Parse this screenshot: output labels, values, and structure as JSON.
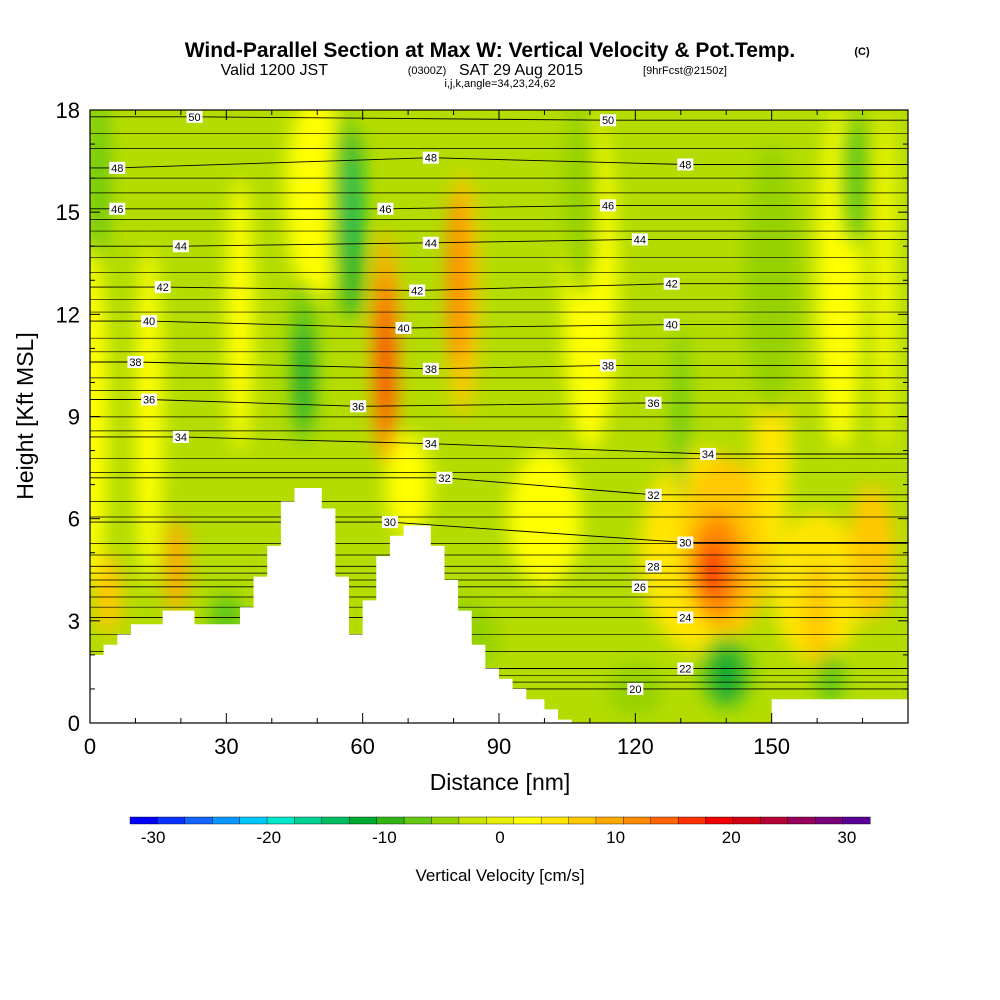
{
  "title": {
    "main": "Wind-Parallel Section at Max W: Vertical Velocity & Pot.Temp.",
    "copyright": "(C)",
    "valid_prefix": "Valid 1200 JST",
    "valid_utc": "(0300Z)",
    "valid_date": "SAT 29 Aug 2015",
    "forecast": "[9hrFcst@2150z]",
    "subtitle2": "i,j,k,angle=34,23,24,62"
  },
  "chart_data": {
    "type": "heatmap",
    "xlabel": "Distance [nm]",
    "ylabel": "Height [Kft MSL]",
    "xlim": [
      0,
      180
    ],
    "ylim": [
      0,
      18
    ],
    "xticks": [
      0,
      30,
      60,
      90,
      120,
      150
    ],
    "yticks": [
      0,
      3,
      6,
      9,
      12,
      15,
      18
    ],
    "shaded_field": "Vertical Velocity [cm/s]",
    "colorbar": {
      "label": "Vertical Velocity [cm/s]",
      "ticks": [
        -30,
        -20,
        -10,
        0,
        10,
        20,
        30
      ],
      "range": [
        -32,
        32
      ],
      "colors": [
        "#0000ff",
        "#0a32ff",
        "#1464ff",
        "#0a96ff",
        "#00c8ff",
        "#00e6c8",
        "#00d296",
        "#00be64",
        "#00aa32",
        "#32b414",
        "#64c814",
        "#96d200",
        "#c8e600",
        "#e6f000",
        "#ffff00",
        "#ffe600",
        "#ffc800",
        "#ffaa00",
        "#ff8c00",
        "#ff6400",
        "#ff3200",
        "#f00000",
        "#d20014",
        "#b40032",
        "#96005a",
        "#780078",
        "#5a0096"
      ]
    },
    "contour_field": "Potential Temperature",
    "contour_labels": [
      {
        "text": "50",
        "x": 23,
        "y": 17.8
      },
      {
        "text": "50",
        "x": 114,
        "y": 17.7
      },
      {
        "text": "48",
        "x": 6,
        "y": 16.3
      },
      {
        "text": "48",
        "x": 75,
        "y": 16.6
      },
      {
        "text": "48",
        "x": 131,
        "y": 16.4
      },
      {
        "text": "46",
        "x": 6,
        "y": 15.1
      },
      {
        "text": "46",
        "x": 65,
        "y": 15.1
      },
      {
        "text": "46",
        "x": 114,
        "y": 15.2
      },
      {
        "text": "44",
        "x": 20,
        "y": 14.0
      },
      {
        "text": "44",
        "x": 75,
        "y": 14.1
      },
      {
        "text": "44",
        "x": 121,
        "y": 14.2
      },
      {
        "text": "42",
        "x": 16,
        "y": 12.8
      },
      {
        "text": "42",
        "x": 72,
        "y": 12.7
      },
      {
        "text": "42",
        "x": 128,
        "y": 12.9
      },
      {
        "text": "40",
        "x": 13,
        "y": 11.8
      },
      {
        "text": "40",
        "x": 69,
        "y": 11.6
      },
      {
        "text": "40",
        "x": 128,
        "y": 11.7
      },
      {
        "text": "38",
        "x": 10,
        "y": 10.6
      },
      {
        "text": "38",
        "x": 75,
        "y": 10.4
      },
      {
        "text": "38",
        "x": 114,
        "y": 10.5
      },
      {
        "text": "36",
        "x": 13,
        "y": 9.5
      },
      {
        "text": "36",
        "x": 59,
        "y": 9.3
      },
      {
        "text": "36",
        "x": 124,
        "y": 9.4
      },
      {
        "text": "34",
        "x": 20,
        "y": 8.4
      },
      {
        "text": "34",
        "x": 75,
        "y": 8.2
      },
      {
        "text": "34",
        "x": 136,
        "y": 7.9
      },
      {
        "text": "32",
        "x": 78,
        "y": 7.2
      },
      {
        "text": "32",
        "x": 124,
        "y": 6.7
      },
      {
        "text": "30",
        "x": 66,
        "y": 5.9
      },
      {
        "text": "30",
        "x": 131,
        "y": 5.3
      },
      {
        "text": "28",
        "x": 124,
        "y": 4.6
      },
      {
        "text": "26",
        "x": 121,
        "y": 4.0
      },
      {
        "text": "24",
        "x": 131,
        "y": 3.1
      },
      {
        "text": "22",
        "x": 131,
        "y": 1.6
      },
      {
        "text": "20",
        "x": 120,
        "y": 1.0
      }
    ]
  }
}
